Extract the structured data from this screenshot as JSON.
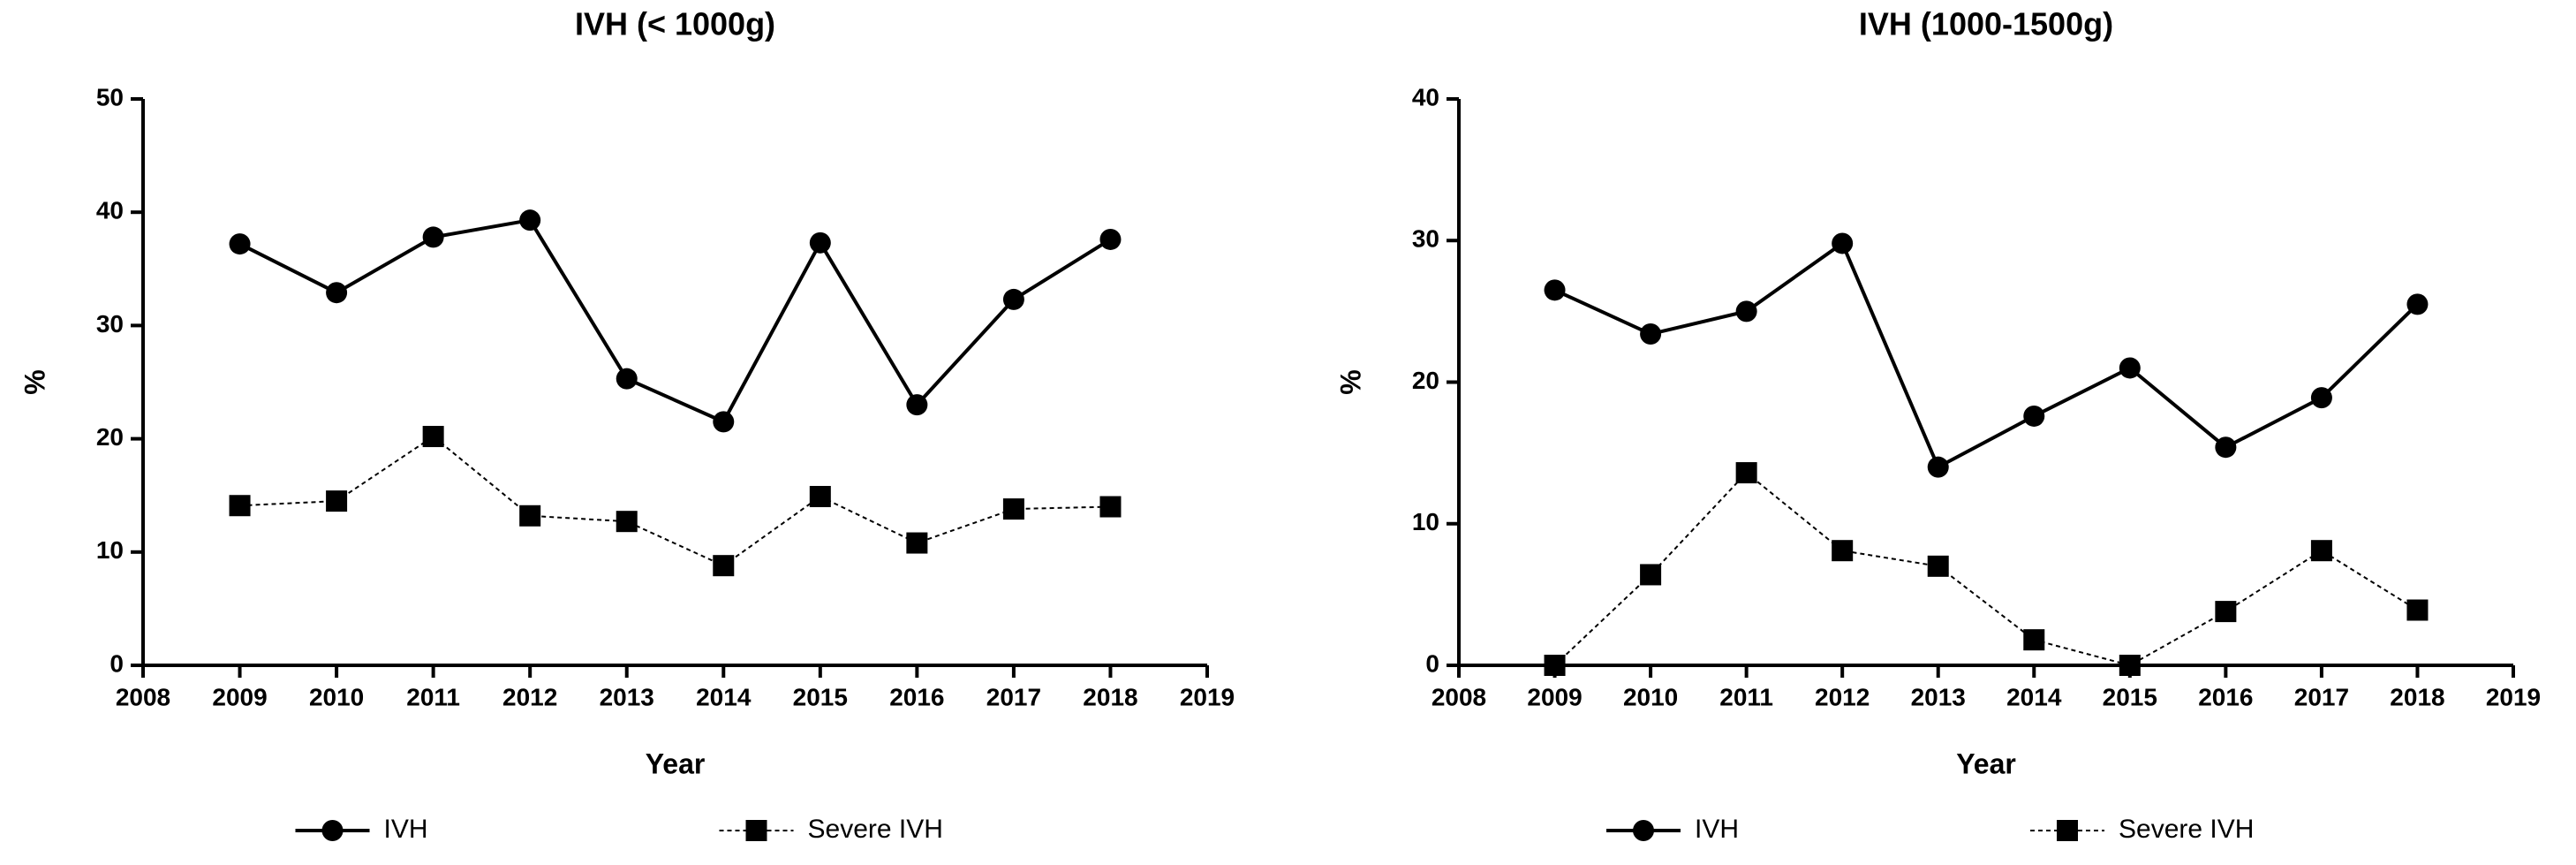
{
  "chart_data": [
    {
      "type": "line",
      "title": "IVH (< 1000g)",
      "x_label": "Year",
      "y_label": "%",
      "x": [
        2009,
        2010,
        2011,
        2012,
        2013,
        2014,
        2015,
        2016,
        2017,
        2018
      ],
      "xlim": [
        2008,
        2019
      ],
      "xticks": [
        2008,
        2009,
        2010,
        2011,
        2012,
        2013,
        2014,
        2015,
        2016,
        2017,
        2018,
        2019
      ],
      "ylim": [
        0,
        50
      ],
      "yticks": [
        0,
        10,
        20,
        30,
        40,
        50
      ],
      "series": [
        {
          "name": "IVH",
          "color": "#000000",
          "marker": "circle",
          "line_style": "solid",
          "values": [
            37.2,
            32.9,
            37.8,
            39.3,
            25.3,
            21.5,
            37.3,
            23.0,
            32.3,
            37.6
          ]
        },
        {
          "name": "Severe IVH",
          "color": "#000000",
          "marker": "square",
          "line_style": "dashed",
          "values": [
            14.1,
            14.5,
            20.2,
            13.2,
            12.7,
            8.8,
            14.9,
            10.8,
            13.8,
            14.0
          ]
        }
      ]
    },
    {
      "type": "line",
      "title": "IVH (1000-1500g)",
      "x_label": "Year",
      "y_label": "%",
      "x": [
        2009,
        2010,
        2011,
        2012,
        2013,
        2014,
        2015,
        2016,
        2017,
        2018
      ],
      "xlim": [
        2008,
        2019
      ],
      "xticks": [
        2008,
        2009,
        2010,
        2011,
        2012,
        2013,
        2014,
        2015,
        2016,
        2017,
        2018,
        2019
      ],
      "ylim": [
        0,
        40
      ],
      "yticks": [
        0,
        10,
        20,
        30,
        40
      ],
      "series": [
        {
          "name": "IVH",
          "color": "#000000",
          "marker": "circle",
          "line_style": "solid",
          "values": [
            26.5,
            23.4,
            25.0,
            29.8,
            14.0,
            17.6,
            21.0,
            15.4,
            18.9,
            25.5
          ]
        },
        {
          "name": "Severe IVH",
          "color": "#000000",
          "marker": "square",
          "line_style": "dashed",
          "values": [
            0,
            6.4,
            13.6,
            8.1,
            7.0,
            1.8,
            0,
            3.8,
            8.1,
            3.9
          ]
        }
      ]
    }
  ]
}
